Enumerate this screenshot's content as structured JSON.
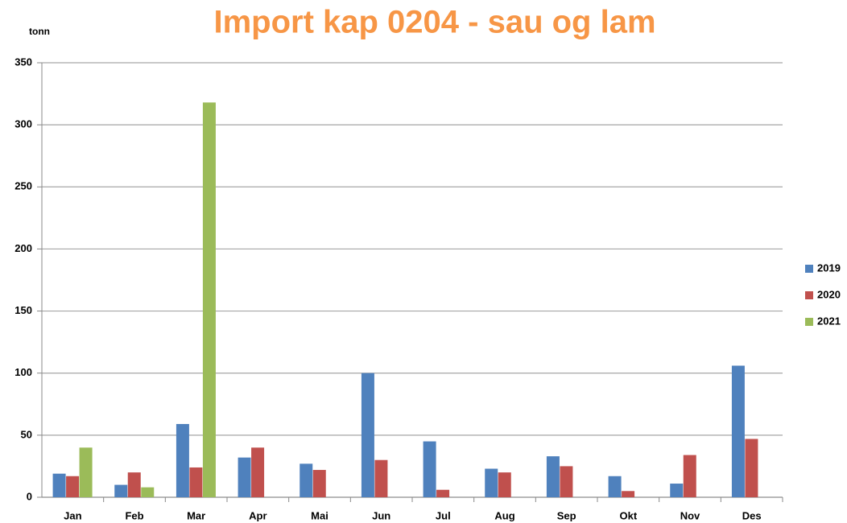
{
  "chart_data": {
    "type": "bar",
    "title": "Import kap 0204 - sau og lam",
    "y_label": "tonn",
    "categories": [
      "Jan",
      "Feb",
      "Mar",
      "Apr",
      "Mai",
      "Jun",
      "Jul",
      "Aug",
      "Sep",
      "Okt",
      "Nov",
      "Des"
    ],
    "series": [
      {
        "name": "2019",
        "color": "#4f81bd",
        "values": [
          19,
          10,
          59,
          32,
          27,
          100,
          45,
          23,
          33,
          17,
          11,
          106
        ]
      },
      {
        "name": "2020",
        "color": "#c0504d",
        "values": [
          17,
          20,
          24,
          40,
          22,
          30,
          6,
          20,
          25,
          5,
          34,
          47
        ]
      },
      {
        "name": "2021",
        "color": "#9bbb59",
        "values": [
          40,
          8,
          318,
          null,
          null,
          null,
          null,
          null,
          null,
          null,
          null,
          null
        ]
      }
    ],
    "ylim": [
      0,
      350
    ],
    "yticks": [
      0,
      50,
      100,
      150,
      200,
      250,
      300,
      350
    ],
    "grid": true,
    "legend": "right"
  }
}
